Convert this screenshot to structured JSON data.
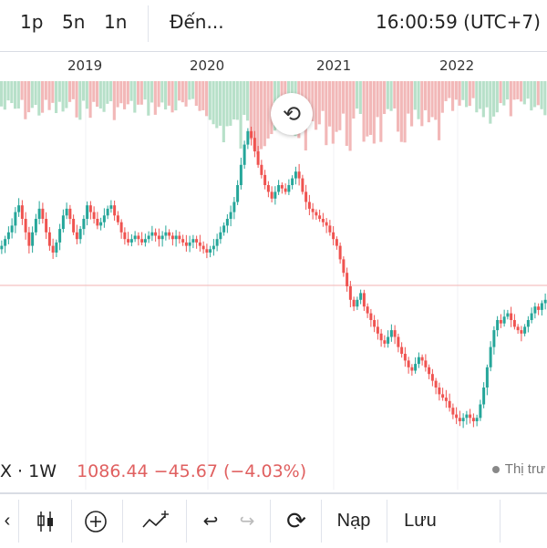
{
  "topbar": {
    "intervals": [
      "1p",
      "5n",
      "1n"
    ],
    "indicator_label": "Đến...",
    "clock": "16:00:59 (UTC+7)"
  },
  "legend": {
    "symbol": "X · 1W",
    "value_text": "1086.44 −45.67 (−4.03%)"
  },
  "note": "Thị trư",
  "toolbar": {
    "nap_label": "Nạp",
    "luu_label": "Lưu"
  },
  "colors": {
    "up": "#26a69a",
    "down": "#ef5350",
    "volume_up": "#b7e0c9",
    "volume_down": "#f2b8b8",
    "price_line": "#f3b3b3"
  },
  "chart_data": {
    "type": "candlestick",
    "x_ticks": [
      "2019",
      "2020",
      "2021",
      "2022"
    ],
    "last_close": 1086.44,
    "change": -45.67,
    "change_percent": -4.03,
    "interval": "1W",
    "close_series": [
      0.62,
      0.64,
      0.66,
      0.68,
      0.72,
      0.74,
      0.7,
      0.66,
      0.62,
      0.66,
      0.7,
      0.73,
      0.7,
      0.66,
      0.62,
      0.6,
      0.63,
      0.67,
      0.71,
      0.73,
      0.7,
      0.66,
      0.64,
      0.67,
      0.7,
      0.74,
      0.72,
      0.7,
      0.68,
      0.69,
      0.71,
      0.73,
      0.74,
      0.71,
      0.69,
      0.66,
      0.64,
      0.63,
      0.64,
      0.65,
      0.64,
      0.63,
      0.64,
      0.65,
      0.66,
      0.65,
      0.64,
      0.65,
      0.66,
      0.65,
      0.64,
      0.65,
      0.64,
      0.63,
      0.62,
      0.63,
      0.64,
      0.63,
      0.62,
      0.61,
      0.6,
      0.61,
      0.62,
      0.64,
      0.66,
      0.68,
      0.7,
      0.72,
      0.75,
      0.8,
      0.86,
      0.92,
      0.96,
      0.94,
      0.9,
      0.86,
      0.83,
      0.8,
      0.78,
      0.76,
      0.78,
      0.8,
      0.79,
      0.78,
      0.8,
      0.82,
      0.84,
      0.82,
      0.78,
      0.75,
      0.73,
      0.72,
      0.71,
      0.7,
      0.69,
      0.68,
      0.66,
      0.64,
      0.62,
      0.58,
      0.54,
      0.5,
      0.46,
      0.44,
      0.46,
      0.48,
      0.44,
      0.42,
      0.4,
      0.38,
      0.36,
      0.34,
      0.33,
      0.35,
      0.37,
      0.35,
      0.32,
      0.3,
      0.28,
      0.26,
      0.25,
      0.27,
      0.29,
      0.28,
      0.26,
      0.24,
      0.22,
      0.2,
      0.18,
      0.17,
      0.16,
      0.14,
      0.12,
      0.11,
      0.1,
      0.11,
      0.12,
      0.11,
      0.1,
      0.11,
      0.15,
      0.2,
      0.26,
      0.32,
      0.37,
      0.4,
      0.39,
      0.41,
      0.42,
      0.4,
      0.38,
      0.37,
      0.36,
      0.38,
      0.4,
      0.42,
      0.44,
      0.43,
      0.45,
      0.46
    ]
  }
}
